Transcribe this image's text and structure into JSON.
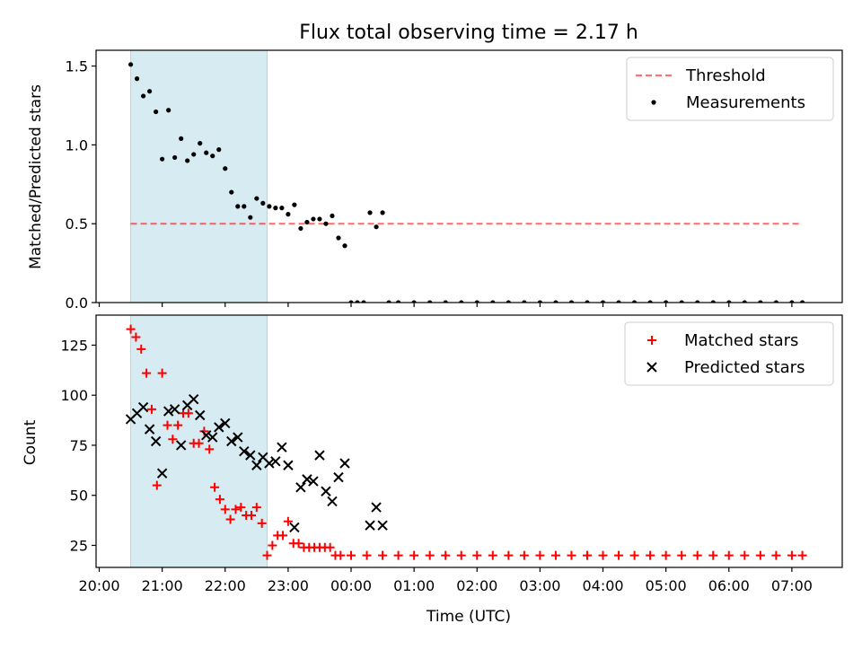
{
  "colors": {
    "shade": "#add8e6",
    "threshold": "#ff0000",
    "measurement": "#000000",
    "matched": "#ff0000",
    "predicted": "#000000"
  },
  "chart_data": [
    {
      "type": "scatter",
      "title": "Flux total observing time = 2.17 h",
      "xlabel": "",
      "ylabel": "Matched/Predicted stars",
      "ylim": [
        0,
        1.6
      ],
      "yticks": [
        "0.0",
        "0.5",
        "1.0",
        "1.5"
      ],
      "shaded_interval": [
        "20:30",
        "22:40"
      ],
      "legend_position": "upper right",
      "threshold": {
        "name": "Threshold",
        "value": 0.5,
        "x_start": "20:30",
        "x_end": "07:10"
      },
      "series": [
        {
          "name": "Measurements",
          "points": [
            [
              "20:30",
              1.51
            ],
            [
              "20:36",
              1.42
            ],
            [
              "20:42",
              1.31
            ],
            [
              "20:48",
              1.34
            ],
            [
              "20:54",
              1.21
            ],
            [
              "21:00",
              0.91
            ],
            [
              "21:06",
              1.22
            ],
            [
              "21:12",
              0.92
            ],
            [
              "21:18",
              1.04
            ],
            [
              "21:24",
              0.9
            ],
            [
              "21:30",
              0.94
            ],
            [
              "21:36",
              1.01
            ],
            [
              "21:42",
              0.95
            ],
            [
              "21:48",
              0.93
            ],
            [
              "21:54",
              0.97
            ],
            [
              "22:00",
              0.85
            ],
            [
              "22:06",
              0.7
            ],
            [
              "22:12",
              0.61
            ],
            [
              "22:18",
              0.61
            ],
            [
              "22:24",
              0.54
            ],
            [
              "22:30",
              0.66
            ],
            [
              "22:36",
              0.63
            ],
            [
              "22:42",
              0.61
            ],
            [
              "22:48",
              0.6
            ],
            [
              "22:54",
              0.6
            ],
            [
              "23:00",
              0.56
            ],
            [
              "23:06",
              0.62
            ],
            [
              "23:12",
              0.47
            ],
            [
              "23:18",
              0.51
            ],
            [
              "23:24",
              0.53
            ],
            [
              "23:30",
              0.53
            ],
            [
              "23:36",
              0.5
            ],
            [
              "23:42",
              0.55
            ],
            [
              "23:48",
              0.41
            ],
            [
              "23:54",
              0.36
            ],
            [
              "00:00",
              0.0
            ],
            [
              "00:06",
              0.0
            ],
            [
              "00:12",
              0.0
            ],
            [
              "00:18",
              0.57
            ],
            [
              "00:24",
              0.48
            ],
            [
              "00:30",
              0.57
            ],
            [
              "00:36",
              0.0
            ],
            [
              "00:45",
              0.0
            ],
            [
              "01:00",
              0.0
            ],
            [
              "01:15",
              0.0
            ],
            [
              "01:30",
              0.0
            ],
            [
              "01:45",
              0.0
            ],
            [
              "02:00",
              0.0
            ],
            [
              "02:15",
              0.0
            ],
            [
              "02:30",
              0.0
            ],
            [
              "02:45",
              0.0
            ],
            [
              "03:00",
              0.0
            ],
            [
              "03:15",
              0.0
            ],
            [
              "03:30",
              0.0
            ],
            [
              "03:45",
              0.0
            ],
            [
              "04:00",
              0.0
            ],
            [
              "04:15",
              0.0
            ],
            [
              "04:30",
              0.0
            ],
            [
              "04:45",
              0.0
            ],
            [
              "05:00",
              0.0
            ],
            [
              "05:15",
              0.0
            ],
            [
              "05:30",
              0.0
            ],
            [
              "05:45",
              0.0
            ],
            [
              "06:00",
              0.0
            ],
            [
              "06:15",
              0.0
            ],
            [
              "06:30",
              0.0
            ],
            [
              "06:45",
              0.0
            ],
            [
              "07:00",
              0.0
            ],
            [
              "07:10",
              0.0
            ]
          ]
        }
      ]
    },
    {
      "type": "scatter",
      "xlabel": "Time (UTC)",
      "ylabel": "Count",
      "ylim": [
        14,
        140
      ],
      "yticks": [
        "25",
        "50",
        "75",
        "100",
        "125"
      ],
      "xticks": [
        "20:00",
        "21:00",
        "22:00",
        "23:00",
        "00:00",
        "01:00",
        "02:00",
        "03:00",
        "04:00",
        "05:00",
        "06:00",
        "07:00"
      ],
      "shaded_interval": [
        "20:30",
        "22:40"
      ],
      "legend_position": "upper right",
      "series": [
        {
          "name": "Matched stars",
          "points": [
            [
              "20:30",
              133
            ],
            [
              "20:35",
              129
            ],
            [
              "20:40",
              123
            ],
            [
              "20:45",
              111
            ],
            [
              "20:50",
              93
            ],
            [
              "20:55",
              55
            ],
            [
              "21:00",
              111
            ],
            [
              "21:05",
              85
            ],
            [
              "21:10",
              78
            ],
            [
              "21:15",
              85
            ],
            [
              "21:20",
              91
            ],
            [
              "21:25",
              91
            ],
            [
              "21:30",
              76
            ],
            [
              "21:35",
              76
            ],
            [
              "21:40",
              82
            ],
            [
              "21:45",
              73
            ],
            [
              "21:50",
              54
            ],
            [
              "21:55",
              48
            ],
            [
              "22:00",
              43
            ],
            [
              "22:05",
              38
            ],
            [
              "22:10",
              43
            ],
            [
              "22:15",
              44
            ],
            [
              "22:20",
              40
            ],
            [
              "22:25",
              40
            ],
            [
              "22:30",
              44
            ],
            [
              "22:35",
              36
            ],
            [
              "22:40",
              20
            ],
            [
              "22:45",
              25
            ],
            [
              "22:50",
              30
            ],
            [
              "22:55",
              30
            ],
            [
              "23:00",
              37
            ],
            [
              "23:05",
              26
            ],
            [
              "23:10",
              26
            ],
            [
              "23:15",
              24
            ],
            [
              "23:20",
              24
            ],
            [
              "23:25",
              24
            ],
            [
              "23:30",
              24
            ],
            [
              "23:35",
              24
            ],
            [
              "23:40",
              24
            ],
            [
              "23:45",
              20
            ],
            [
              "23:50",
              20
            ],
            [
              "00:00",
              20
            ],
            [
              "00:15",
              20
            ],
            [
              "00:30",
              20
            ],
            [
              "00:45",
              20
            ],
            [
              "01:00",
              20
            ],
            [
              "01:15",
              20
            ],
            [
              "01:30",
              20
            ],
            [
              "01:45",
              20
            ],
            [
              "02:00",
              20
            ],
            [
              "02:15",
              20
            ],
            [
              "02:30",
              20
            ],
            [
              "02:45",
              20
            ],
            [
              "03:00",
              20
            ],
            [
              "03:15",
              20
            ],
            [
              "03:30",
              20
            ],
            [
              "03:45",
              20
            ],
            [
              "04:00",
              20
            ],
            [
              "04:15",
              20
            ],
            [
              "04:30",
              20
            ],
            [
              "04:45",
              20
            ],
            [
              "05:00",
              20
            ],
            [
              "05:15",
              20
            ],
            [
              "05:30",
              20
            ],
            [
              "05:45",
              20
            ],
            [
              "06:00",
              20
            ],
            [
              "06:15",
              20
            ],
            [
              "06:30",
              20
            ],
            [
              "06:45",
              20
            ],
            [
              "07:00",
              20
            ],
            [
              "07:10",
              20
            ]
          ]
        },
        {
          "name": "Predicted stars",
          "points": [
            [
              "20:30",
              88
            ],
            [
              "20:36",
              91
            ],
            [
              "20:42",
              94
            ],
            [
              "20:48",
              83
            ],
            [
              "20:54",
              77
            ],
            [
              "21:00",
              61
            ],
            [
              "21:06",
              92
            ],
            [
              "21:12",
              93
            ],
            [
              "21:18",
              75
            ],
            [
              "21:24",
              95
            ],
            [
              "21:30",
              98
            ],
            [
              "21:36",
              90
            ],
            [
              "21:42",
              80
            ],
            [
              "21:48",
              79
            ],
            [
              "21:54",
              84
            ],
            [
              "22:00",
              86
            ],
            [
              "22:06",
              77
            ],
            [
              "22:12",
              79
            ],
            [
              "22:18",
              72
            ],
            [
              "22:24",
              70
            ],
            [
              "22:30",
              65
            ],
            [
              "22:36",
              69
            ],
            [
              "22:42",
              66
            ],
            [
              "22:48",
              67
            ],
            [
              "22:54",
              74
            ],
            [
              "23:00",
              65
            ],
            [
              "23:06",
              34
            ],
            [
              "23:12",
              54
            ],
            [
              "23:18",
              58
            ],
            [
              "23:24",
              57
            ],
            [
              "23:30",
              70
            ],
            [
              "23:36",
              52
            ],
            [
              "23:42",
              47
            ],
            [
              "23:48",
              59
            ],
            [
              "23:54",
              66
            ],
            [
              "00:18",
              35
            ],
            [
              "00:24",
              44
            ],
            [
              "00:30",
              35
            ]
          ]
        }
      ]
    }
  ]
}
